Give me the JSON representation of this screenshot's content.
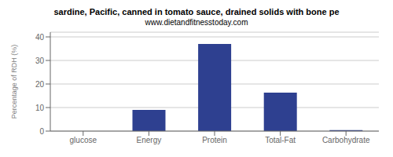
{
  "chart_data": {
    "type": "bar",
    "title": "sardine, Pacific, canned in tomato sauce, drained solids with bone pe",
    "subtitle": "www.dietandfitnesstoday.com",
    "categories": [
      "glucose",
      "Energy",
      "Protein",
      "Total-Fat",
      "Carbohydrate"
    ],
    "values": [
      0,
      9.0,
      37.0,
      16.3,
      0.4
    ],
    "color": "#2e4090",
    "ylabel": "Percentage of RDH (%)",
    "ylim": [
      0,
      42
    ],
    "yticks": [
      0,
      10,
      20,
      30,
      40
    ],
    "grid": true
  }
}
